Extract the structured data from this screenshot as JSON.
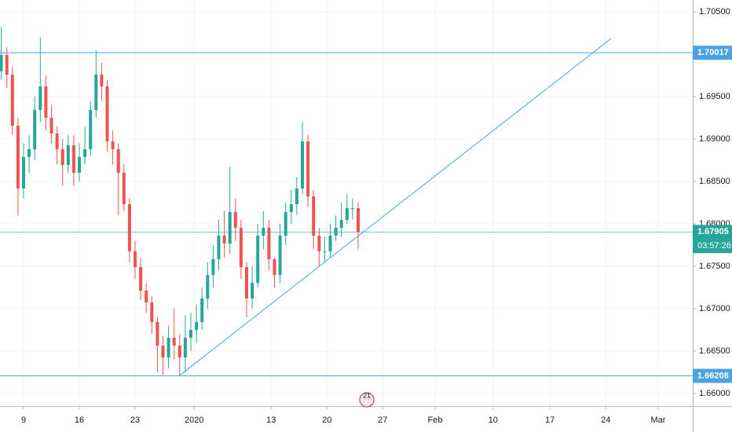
{
  "chart_data": {
    "type": "candlestick",
    "candles": {
      "x": [
        -2,
        -1.5,
        -1,
        -0.5,
        0,
        0.5,
        1,
        1.5,
        2,
        2.5,
        3,
        3.5,
        4,
        4.5,
        5,
        5.5,
        6,
        6.5,
        7,
        7.5,
        8,
        8.5,
        9,
        9.5,
        10,
        10.5,
        11,
        11.5,
        12,
        12.5,
        13,
        13.5,
        14,
        14.5,
        15,
        15.5,
        16,
        16.5,
        17,
        17.5,
        18,
        18.5,
        19,
        19.5,
        20,
        20.5,
        21,
        21.5,
        22,
        22.5,
        23,
        23.5,
        24,
        24.5,
        25,
        25.5,
        26,
        26.5,
        27,
        27.5,
        28,
        28.5,
        29,
        29.5,
        30
      ],
      "open": [
        1.698,
        1.69991,
        1.69759,
        1.69157,
        1.68417,
        1.68787,
        1.6888,
        1.69343,
        1.6962,
        1.6925,
        1.69065,
        1.6888,
        1.68694,
        1.68926,
        1.68602,
        1.68787,
        1.6888,
        1.69343,
        1.69759,
        1.6962,
        1.68972,
        1.6888,
        1.68602,
        1.68231,
        1.67676,
        1.67491,
        1.67213,
        1.67074,
        1.66843,
        1.66565,
        1.66426,
        1.66657,
        1.66565,
        1.66426,
        1.66657,
        1.6675,
        1.66843,
        1.6712,
        1.67398,
        1.67583,
        1.67861,
        1.67769,
        1.68139,
        1.67954,
        1.67491,
        1.6712,
        1.67306,
        1.67861,
        1.67954,
        1.67583,
        1.67398,
        1.67861,
        1.68139,
        1.68231,
        1.68417,
        1.68972,
        1.68324,
        1.67861,
        1.67676,
        1.67676,
        1.67861,
        1.67954,
        1.68046,
        1.68185,
        1.68185
      ],
      "high": [
        1.7032,
        1.7008,
        1.6985,
        1.6925,
        1.6895,
        1.6905,
        1.695,
        1.702,
        1.6975,
        1.694,
        1.6915,
        1.69,
        1.6905,
        1.6905,
        1.6895,
        1.6915,
        1.6945,
        1.7005,
        1.699,
        1.697,
        1.691,
        1.6895,
        1.687,
        1.683,
        1.678,
        1.676,
        1.673,
        1.6715,
        1.669,
        1.6668,
        1.668,
        1.67,
        1.667,
        1.6692,
        1.6695,
        1.6705,
        1.6725,
        1.6755,
        1.6775,
        1.6805,
        1.6815,
        1.6867,
        1.683,
        1.6805,
        1.6755,
        1.675,
        1.68,
        1.6815,
        1.6805,
        1.676,
        1.68,
        1.6825,
        1.684,
        1.6855,
        1.692,
        1.6905,
        1.684,
        1.6795,
        1.6785,
        1.68,
        1.681,
        1.6825,
        1.6835,
        1.683,
        1.6825
      ],
      "low": [
        1.697,
        1.696,
        1.6905,
        1.681,
        1.683,
        1.686,
        1.6875,
        1.692,
        1.691,
        1.6895,
        1.687,
        1.6845,
        1.686,
        1.6845,
        1.685,
        1.687,
        1.688,
        1.6925,
        1.6945,
        1.6885,
        1.687,
        1.681,
        1.6815,
        1.6755,
        1.6735,
        1.671,
        1.6695,
        1.667,
        1.6625,
        1.6622,
        1.663,
        1.664,
        1.6621,
        1.6625,
        1.665,
        1.666,
        1.6675,
        1.67,
        1.6725,
        1.6745,
        1.676,
        1.6765,
        1.678,
        1.6735,
        1.669,
        1.67,
        1.6725,
        1.677,
        1.6745,
        1.6725,
        1.673,
        1.6775,
        1.68,
        1.681,
        1.6835,
        1.682,
        1.677,
        1.675,
        1.6755,
        1.676,
        1.678,
        1.6785,
        1.68,
        1.6805,
        1.677
      ],
      "close": [
        1.69991,
        1.69759,
        1.69157,
        1.68417,
        1.68787,
        1.6888,
        1.69343,
        1.6962,
        1.6925,
        1.69065,
        1.6888,
        1.68694,
        1.68926,
        1.68602,
        1.68787,
        1.6888,
        1.69343,
        1.69759,
        1.6962,
        1.68972,
        1.6888,
        1.68602,
        1.68231,
        1.67676,
        1.67491,
        1.67213,
        1.67074,
        1.66843,
        1.66565,
        1.66426,
        1.66657,
        1.66565,
        1.66426,
        1.66657,
        1.6675,
        1.66843,
        1.6712,
        1.67398,
        1.67583,
        1.67861,
        1.67769,
        1.68139,
        1.67954,
        1.67491,
        1.6712,
        1.67306,
        1.67861,
        1.67954,
        1.67583,
        1.67398,
        1.67861,
        1.68139,
        1.68231,
        1.68417,
        1.68972,
        1.68324,
        1.67861,
        1.67676,
        1.67676,
        1.67861,
        1.67954,
        1.68046,
        1.68185,
        1.68185,
        1.67905
      ],
      "up_color": "#26a69a",
      "down_color": "#ef5350"
    },
    "xlim": [
      -2.113,
      60.0
    ],
    "xticks": [
      {
        "value": 0,
        "label": "9"
      },
      {
        "value": 5,
        "label": "16"
      },
      {
        "value": 10,
        "label": "23"
      },
      {
        "value": 15.3,
        "label": "2020"
      },
      {
        "value": 22.2,
        "label": "13"
      },
      {
        "value": 27.2,
        "label": "20"
      },
      {
        "value": 32.2,
        "label": "27"
      },
      {
        "value": 36.9,
        "label": "Feb"
      },
      {
        "value": 42.1,
        "label": "10"
      },
      {
        "value": 47.2,
        "label": "17"
      },
      {
        "value": 52.2,
        "label": "24"
      },
      {
        "value": 56.9,
        "label": "Mar"
      }
    ],
    "ylim": [
      1.65852,
      1.70639
    ],
    "yticks": [
      {
        "value": 1.66,
        "label": "1.66000"
      },
      {
        "value": 1.665,
        "label": "1.66500"
      },
      {
        "value": 1.67,
        "label": "1.67000"
      },
      {
        "value": 1.675,
        "label": "1.67500"
      },
      {
        "value": 1.68,
        "label": "1.68000"
      },
      {
        "value": 1.685,
        "label": "1.68500"
      },
      {
        "value": 1.69,
        "label": "1.69000"
      },
      {
        "value": 1.695,
        "label": "1.69500"
      },
      {
        "value": 1.705,
        "label": "1.70500"
      }
    ],
    "grid": true,
    "horizontal_lines": [
      1.70017,
      1.66208
    ],
    "line_color": "#4ba3e3",
    "trend_lines": [
      {
        "x": [
          13.94,
          52.68
        ],
        "y": [
          1.66208,
          1.70185
        ]
      }
    ],
    "current_price": {
      "value": 1.67905,
      "countdown": "03:57:26",
      "color": "#26a69a"
    },
    "event_badge": "21"
  }
}
